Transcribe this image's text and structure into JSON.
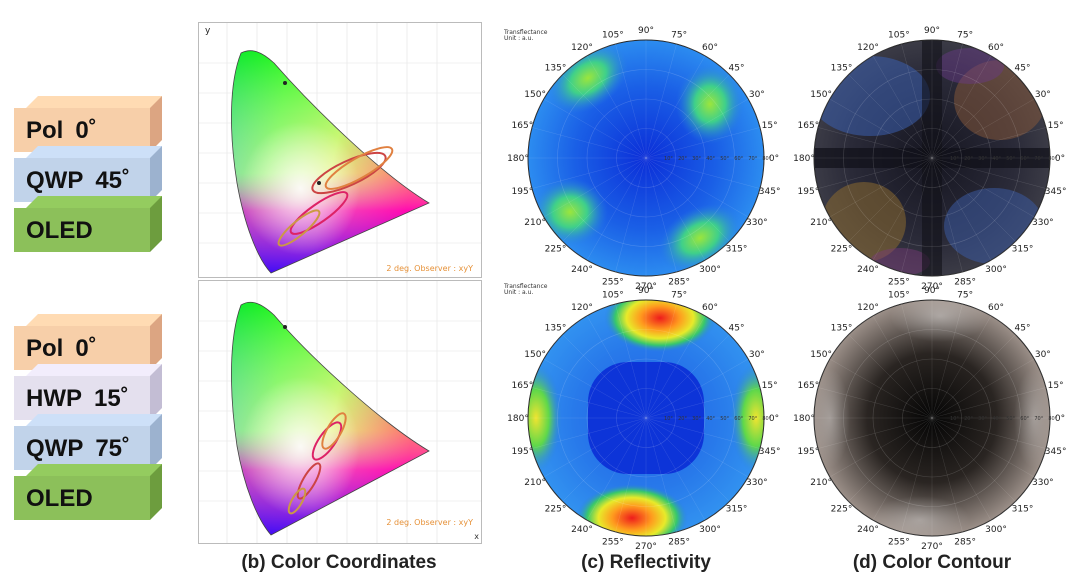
{
  "stack_a": [
    {
      "label": "Pol",
      "angle": "0˚",
      "color": "#f7cfa9",
      "side": "#dca582"
    },
    {
      "label": "QWP",
      "angle": "45˚",
      "color": "#c1d3ea",
      "side": "#9cb2cf"
    },
    {
      "label": "OLED",
      "angle": "",
      "color": "#8cc05a",
      "side": "#6d9d3e"
    }
  ],
  "stack_b": [
    {
      "label": "Pol",
      "angle": "0˚",
      "color": "#f7cfa9",
      "side": "#dca582"
    },
    {
      "label": "HWP",
      "angle": "15˚",
      "color": "#e4e0ee",
      "side": "#c3bdd4"
    },
    {
      "label": "QWP",
      "angle": "75˚",
      "color": "#c1d3ea",
      "side": "#9cb2cf"
    },
    {
      "label": "OLED",
      "angle": "",
      "color": "#8cc05a",
      "side": "#6d9d3e"
    }
  ],
  "captions": {
    "b": "(b) Color Coordinates",
    "c": "(c) Reflectivity",
    "d": "(d) Color Contour"
  },
  "chart_labels": {
    "observer": "2 deg. Observer : xyY",
    "y_axis": "y",
    "x_axis": "x",
    "header_line1": "Transflectance",
    "header_line2": "Unit : a.u."
  },
  "angles": [
    "0°",
    "15°",
    "30°",
    "45°",
    "60°",
    "75°",
    "90°",
    "105°",
    "120°",
    "135°",
    "150°",
    "165°",
    "180°",
    "195°",
    "210°",
    "225°",
    "240°",
    "255°",
    "270°",
    "285°",
    "300°",
    "315°",
    "330°",
    "345°"
  ],
  "radial_ticks": [
    "10°",
    "20°",
    "30°",
    "40°",
    "50°",
    "60°",
    "70°",
    "80°"
  ]
}
